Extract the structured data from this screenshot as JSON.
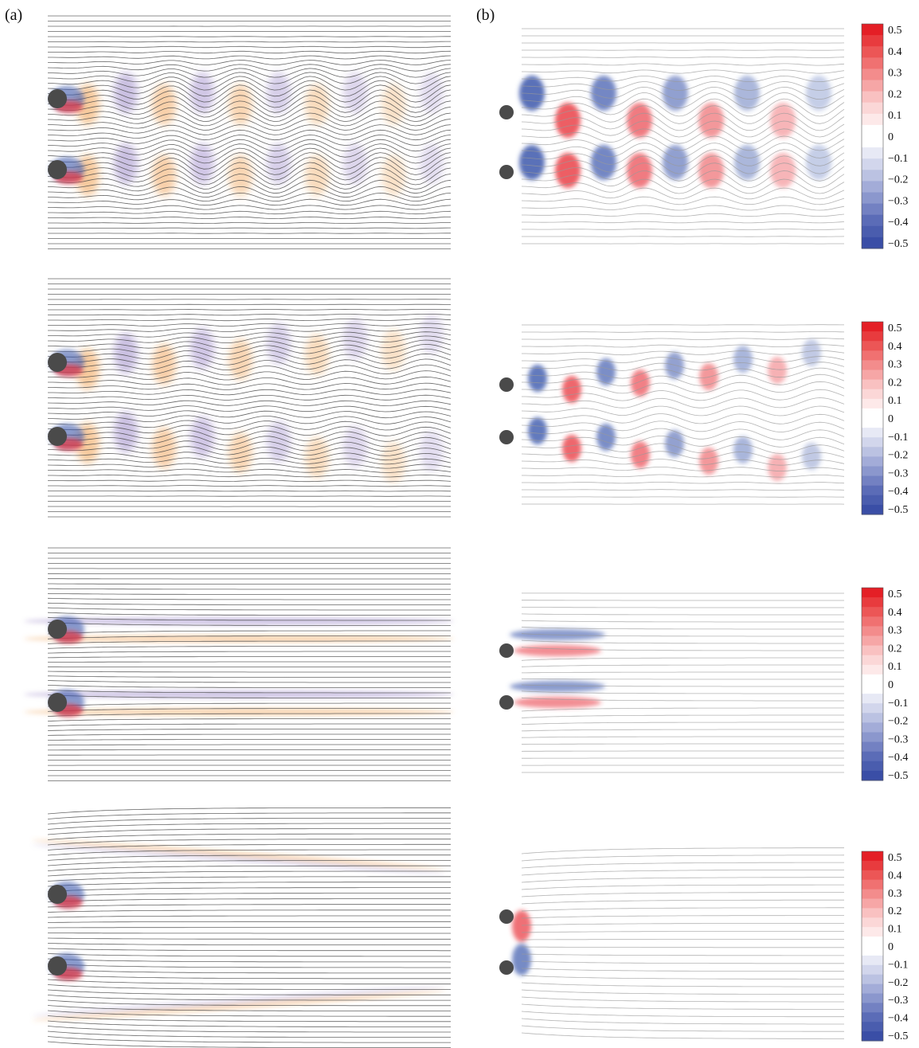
{
  "figure": {
    "panel_labels": {
      "a": "(a)",
      "b": "(b)"
    },
    "rows": 4,
    "colorbar": {
      "ticks": [
        "0.5",
        "0.4",
        "0.3",
        "0.2",
        "0.1",
        "0",
        "−0.1",
        "−0.2",
        "−0.3",
        "−0.4",
        "−0.5"
      ],
      "range": [
        -0.5,
        0.5
      ],
      "colors": {
        "positive": "#e8232b",
        "negative": "#3a56a8",
        "zero": "#ffffff"
      }
    },
    "colors": {
      "streamline_a": "#4a4a4a",
      "streamline_b": "#9a9a9a",
      "vortex_a_pos": "#f0a050",
      "vortex_a_neg": "#9a86c8",
      "vortex_b_pos": "#e8323a",
      "vortex_b_neg": "#3c58ac",
      "cylinder": "#4a4a4a"
    },
    "row_regimes": [
      "shedding-wavy",
      "shedding-separated",
      "steady-wake",
      "steady-diverging"
    ]
  }
}
